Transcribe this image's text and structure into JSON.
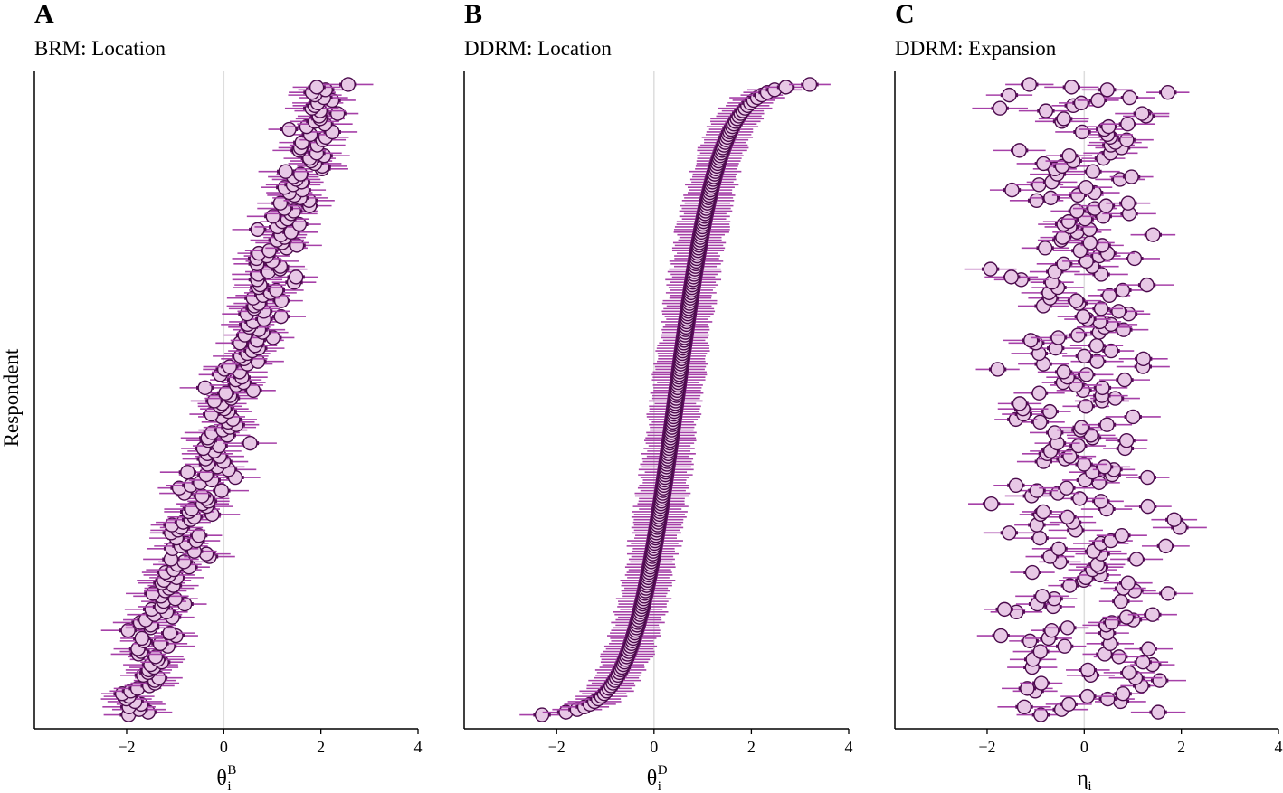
{
  "ylabel": "Respondent",
  "colors": {
    "point_fill": "#e8c8e6",
    "point_stroke": "#4b0a4c",
    "ci_outer": "#a640a8",
    "ci_inner": "#5a0e5c",
    "zero_line": "#dddddd"
  },
  "chart_data": [
    {
      "type": "scatter",
      "panel_label": "A",
      "title": "BRM: Location",
      "xlabel": "θ",
      "xlabel_sub": "i",
      "xlabel_sup": "B",
      "xlim": [
        -3.9,
        4.0
      ],
      "xticks": [
        -2,
        0,
        2,
        4
      ],
      "tick_labels": [
        "−2",
        "0",
        "2",
        "4"
      ],
      "zero_line": true,
      "n_respondents": 240,
      "sorted_by_location": false,
      "location_range": [
        -2.3,
        2.4
      ],
      "noise_sd": 0.45,
      "ci_half_width_outer": 0.5,
      "ci_half_width_inner": 0.18,
      "seed": 11
    },
    {
      "type": "scatter",
      "panel_label": "B",
      "title": "DDRM: Location",
      "xlabel": "θ",
      "xlabel_sub": "i",
      "xlabel_sup": "D",
      "xlim": [
        -3.9,
        4.0
      ],
      "xticks": [
        -2,
        0,
        2,
        4
      ],
      "tick_labels": [
        "−2",
        "0",
        "2",
        "4"
      ],
      "zero_line": true,
      "n_respondents": 240,
      "sorted_by_location": true,
      "location_range": [
        -2.3,
        3.2
      ],
      "noise_sd": 0,
      "ci_half_width_outer": 0.5,
      "ci_half_width_inner": 0.18,
      "seed": 23
    },
    {
      "type": "scatter",
      "panel_label": "C",
      "title": "DDRM: Expansion",
      "xlabel": "η",
      "xlabel_sub": "i",
      "xlabel_sup": "",
      "xlim": [
        -3.9,
        4.0
      ],
      "xticks": [
        -2,
        0,
        2,
        4
      ],
      "tick_labels": [
        "−2",
        "0",
        "2",
        "4"
      ],
      "zero_line": true,
      "n_respondents": 240,
      "sorted_by_location": false,
      "location_range": [
        -2.7,
        2.5
      ],
      "noise_sd": 0.9,
      "ci_half_width_outer": 0.5,
      "ci_half_width_inner": 0.18,
      "seed": 37
    }
  ]
}
